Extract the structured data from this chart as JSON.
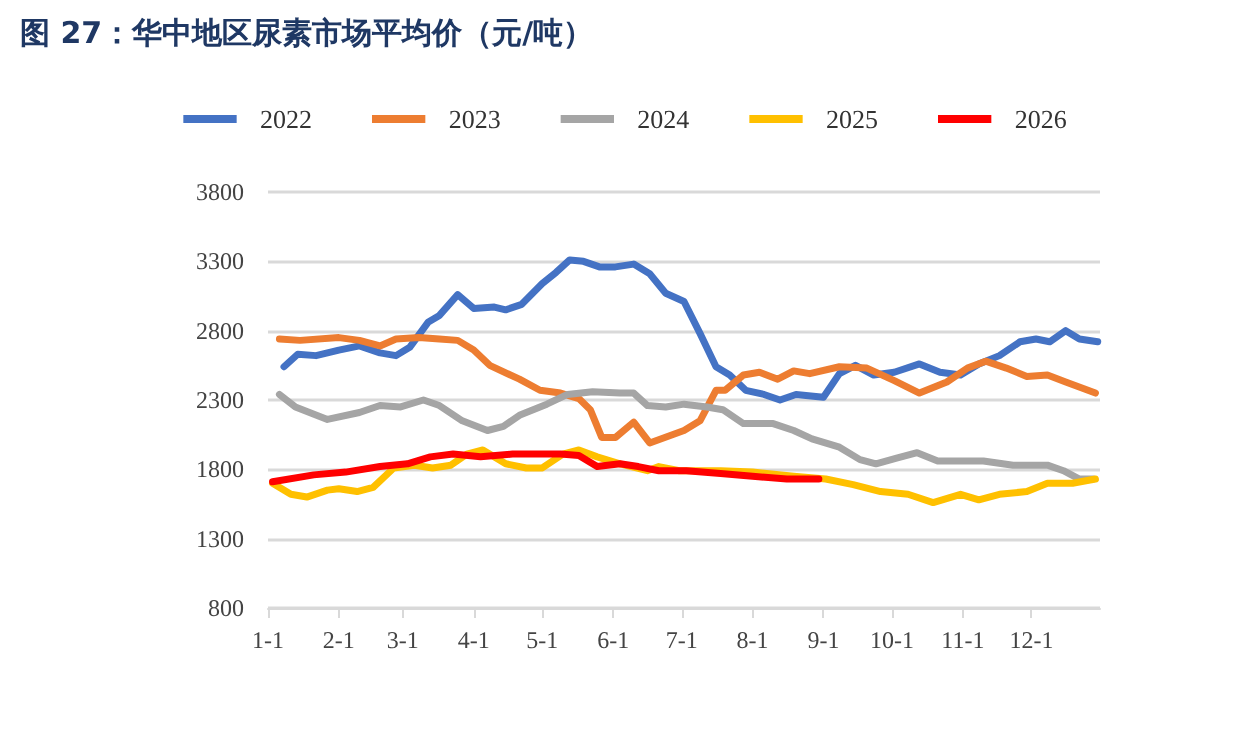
{
  "chart_data": {
    "type": "line",
    "title": "图 27：华中地区尿素市场平均价（元/吨）",
    "xlim": [
      "--01-01",
      "--12-31"
    ],
    "xticks": [
      {
        "value": "--01-01",
        "label": "1-1"
      },
      {
        "value": "--02-01",
        "label": "2-1"
      },
      {
        "value": "--03-01",
        "label": "3-1"
      },
      {
        "value": "--04-01",
        "label": "4-1"
      },
      {
        "value": "--05-01",
        "label": "5-1"
      },
      {
        "value": "--06-01",
        "label": "6-1"
      },
      {
        "value": "--07-01",
        "label": "7-1"
      },
      {
        "value": "--08-01",
        "label": "8-1"
      },
      {
        "value": "--09-01",
        "label": "9-1"
      },
      {
        "value": "--10-01",
        "label": "10-1"
      },
      {
        "value": "--11-01",
        "label": "11-1"
      },
      {
        "value": "--12-01",
        "label": "12-1"
      }
    ],
    "ylim": [
      800,
      3800
    ],
    "yticks": [
      800,
      1300,
      1800,
      2300,
      2800,
      3300,
      3800
    ],
    "grid": "y",
    "legend": "top",
    "marker": "none",
    "line_style": "solid",
    "series": [
      {
        "name": "2022",
        "color": "#4472c4",
        "x": [
          "--01-08",
          "--01-14",
          "--01-22",
          "--02-01",
          "--02-10",
          "--02-19",
          "--02-26",
          "--03-04",
          "--03-12",
          "--03-17",
          "--03-25",
          "--04-01",
          "--04-10",
          "--04-15",
          "--04-22",
          "--05-01",
          "--05-07",
          "--05-13",
          "--05-19",
          "--05-26",
          "--06-02",
          "--06-10",
          "--06-17",
          "--06-24",
          "--07-02",
          "--07-09",
          "--07-16",
          "--07-22",
          "--07-29",
          "--08-06",
          "--08-13",
          "--08-20",
          "--09-01",
          "--09-08",
          "--09-15",
          "--09-23",
          "--10-02",
          "--10-13",
          "--10-22",
          "--10-31",
          "--11-08",
          "--11-17",
          "--11-26",
          "--12-03",
          "--12-09",
          "--12-16",
          "--12-22",
          "--12-30"
        ],
        "values": [
          2540,
          2630,
          2620,
          2660,
          2690,
          2640,
          2620,
          2680,
          2860,
          2910,
          3060,
          2960,
          2970,
          2950,
          2990,
          3140,
          3220,
          3310,
          3300,
          3260,
          3260,
          3280,
          3210,
          3070,
          3010,
          2780,
          2540,
          2480,
          2370,
          2340,
          2300,
          2340,
          2320,
          2490,
          2550,
          2480,
          2500,
          2560,
          2500,
          2480,
          2560,
          2620,
          2720,
          2740,
          2720,
          2800,
          2740,
          2720
        ]
      },
      {
        "name": "2023",
        "color": "#ed7d31",
        "x": [
          "--01-06",
          "--01-15",
          "--02-01",
          "--02-10",
          "--02-19",
          "--02-26",
          "--03-08",
          "--03-17",
          "--03-25",
          "--04-01",
          "--04-08",
          "--04-21",
          "--04-30",
          "--05-09",
          "--05-17",
          "--05-22",
          "--05-27",
          "--06-02",
          "--06-10",
          "--06-17",
          "--07-02",
          "--07-09",
          "--07-16",
          "--07-20",
          "--07-28",
          "--08-04",
          "--08-12",
          "--08-19",
          "--08-26",
          "--09-08",
          "--09-20",
          "--10-02",
          "--10-13",
          "--10-25",
          "--11-03",
          "--11-11",
          "--11-20",
          "--11-29",
          "--12-08",
          "--12-16",
          "--12-29"
        ],
        "values": [
          2740,
          2730,
          2750,
          2730,
          2690,
          2740,
          2750,
          2740,
          2730,
          2660,
          2550,
          2450,
          2370,
          2350,
          2310,
          2230,
          2030,
          2030,
          2140,
          1990,
          2080,
          2150,
          2370,
          2370,
          2480,
          2500,
          2450,
          2510,
          2490,
          2540,
          2530,
          2440,
          2350,
          2430,
          2530,
          2580,
          2530,
          2470,
          2480,
          2430,
          2350
        ]
      },
      {
        "name": "2024",
        "color": "#a5a5a5",
        "x": [
          "--01-06",
          "--01-13",
          "--01-27",
          "--02-10",
          "--02-19",
          "--02-28",
          "--03-10",
          "--03-17",
          "--03-27",
          "--04-07",
          "--04-14",
          "--04-21",
          "--05-03",
          "--05-12",
          "--05-23",
          "--06-04",
          "--06-10",
          "--06-16",
          "--06-24",
          "--07-02",
          "--07-12",
          "--07-19",
          "--07-28",
          "--08-10",
          "--08-19",
          "--08-27",
          "--09-08",
          "--09-17",
          "--09-24",
          "--10-03",
          "--10-12",
          "--10-21",
          "--10-31",
          "--11-10",
          "--11-23",
          "--12-08",
          "--12-15",
          "--12-22",
          "--12-28"
        ],
        "values": [
          2340,
          2250,
          2160,
          2210,
          2260,
          2250,
          2300,
          2260,
          2150,
          2080,
          2110,
          2190,
          2270,
          2340,
          2360,
          2350,
          2350,
          2260,
          2250,
          2270,
          2250,
          2230,
          2130,
          2130,
          2080,
          2020,
          1960,
          1870,
          1840,
          1880,
          1920,
          1860,
          1860,
          1860,
          1830,
          1830,
          1790,
          1730,
          1730
        ]
      },
      {
        "name": "2025",
        "color": "#ffc000",
        "x": [
          "--01-03",
          "--01-11",
          "--01-18",
          "--01-27",
          "--02-01",
          "--02-09",
          "--02-16",
          "--02-25",
          "--03-06",
          "--03-14",
          "--03-22",
          "--03-29",
          "--04-05",
          "--04-15",
          "--04-24",
          "--05-01",
          "--05-10",
          "--05-17",
          "--05-25",
          "--06-04",
          "--06-16",
          "--06-21",
          "--06-30",
          "--07-18",
          "--08-01",
          "--08-19",
          "--09-02",
          "--09-14",
          "--09-26",
          "--10-08",
          "--10-19",
          "--10-31",
          "--11-08",
          "--11-17",
          "--11-29",
          "--12-08",
          "--12-19",
          "--12-29"
        ],
        "values": [
          1700,
          1620,
          1600,
          1650,
          1660,
          1640,
          1670,
          1810,
          1830,
          1810,
          1830,
          1910,
          1940,
          1840,
          1810,
          1810,
          1910,
          1940,
          1890,
          1840,
          1790,
          1820,
          1790,
          1790,
          1780,
          1750,
          1730,
          1690,
          1640,
          1620,
          1560,
          1620,
          1580,
          1620,
          1640,
          1700,
          1700,
          1730
        ]
      },
      {
        "name": "2026",
        "color": "#ff0000",
        "x": [
          "--01-03",
          "--01-21",
          "--02-04",
          "--02-19",
          "--03-03",
          "--03-13",
          "--03-23",
          "--04-04",
          "--04-18",
          "--05-09",
          "--05-17",
          "--05-25",
          "--06-04",
          "--06-12",
          "--06-21",
          "--07-03",
          "--07-18",
          "--08-01",
          "--08-16",
          "--08-30"
        ],
        "values": [
          1710,
          1760,
          1780,
          1820,
          1840,
          1890,
          1910,
          1890,
          1910,
          1910,
          1900,
          1820,
          1840,
          1820,
          1790,
          1790,
          1770,
          1750,
          1730,
          1730
        ]
      }
    ]
  }
}
